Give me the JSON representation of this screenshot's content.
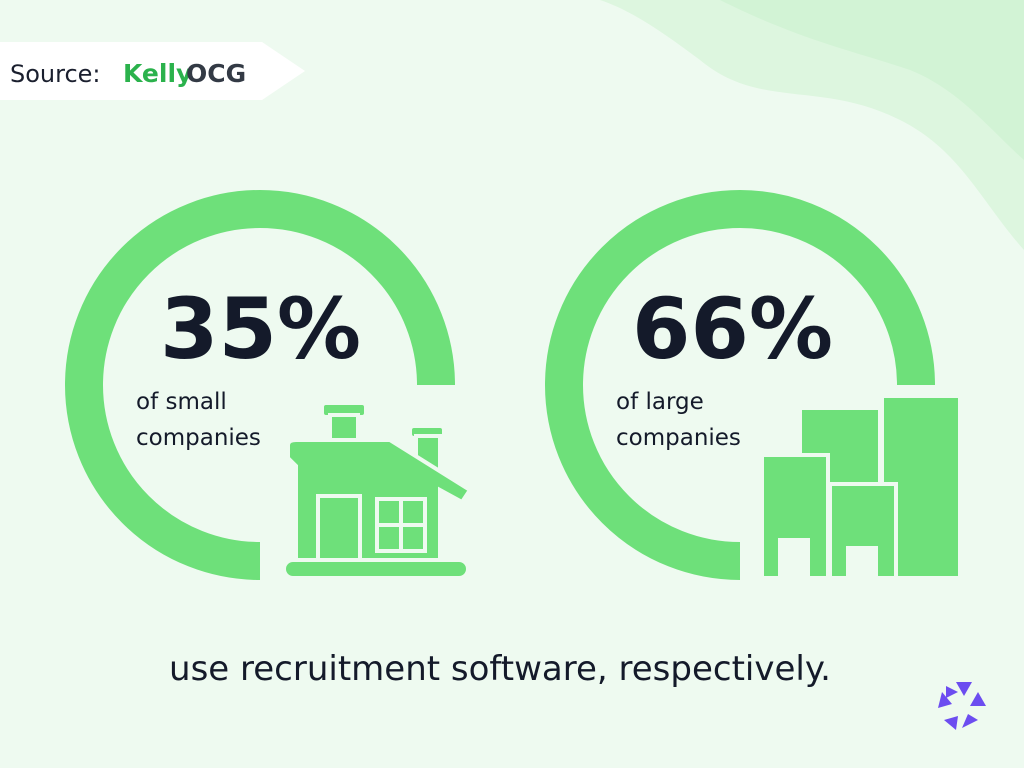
{
  "source": {
    "label": "Source:",
    "brand_part1": "Kelly",
    "brand_part2": "OCG"
  },
  "stats": [
    {
      "value": "35%",
      "line1": "of small",
      "line2": "companies"
    },
    {
      "value": "66%",
      "line1": "of large",
      "line2": "companies"
    }
  ],
  "footer": "use recruitment software, respectively."
}
